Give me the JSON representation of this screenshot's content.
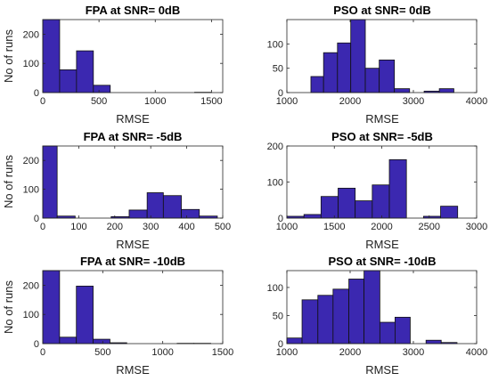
{
  "bar_color": "#3B28B0",
  "bar_edge": "#111111",
  "chart_data": [
    {
      "type": "bar",
      "title": "FPA at SNR= 0dB",
      "xlabel": "RMSE",
      "ylabel": "No of runs",
      "xlim": [
        0,
        1600
      ],
      "ylim": [
        0,
        250
      ],
      "xticks": [
        0,
        500,
        1000,
        1500
      ],
      "yticks": [
        0,
        100,
        200
      ],
      "bins": [
        {
          "x0": 0,
          "x1": 150,
          "value": 260
        },
        {
          "x0": 150,
          "x1": 300,
          "value": 78
        },
        {
          "x0": 300,
          "x1": 450,
          "value": 143
        },
        {
          "x0": 450,
          "x1": 600,
          "value": 25
        },
        {
          "x0": 600,
          "x1": 750,
          "value": 0
        },
        {
          "x0": 750,
          "x1": 900,
          "value": 0
        },
        {
          "x0": 900,
          "x1": 1050,
          "value": 0
        },
        {
          "x0": 1050,
          "x1": 1200,
          "value": 0
        },
        {
          "x0": 1200,
          "x1": 1350,
          "value": 0
        },
        {
          "x0": 1350,
          "x1": 1500,
          "value": 1
        }
      ]
    },
    {
      "type": "bar",
      "title": "PSO at SNR= 0dB",
      "xlabel": "RMSE",
      "ylabel": "",
      "xlim": [
        1000,
        4000
      ],
      "ylim": [
        0,
        150
      ],
      "xticks": [
        1000,
        2000,
        3000,
        4000
      ],
      "yticks": [
        0,
        50,
        100
      ],
      "bins": [
        {
          "x0": 1380,
          "x1": 1580,
          "value": 33
        },
        {
          "x0": 1580,
          "x1": 1800,
          "value": 82
        },
        {
          "x0": 1800,
          "x1": 2010,
          "value": 102
        },
        {
          "x0": 2010,
          "x1": 2240,
          "value": 155
        },
        {
          "x0": 2240,
          "x1": 2460,
          "value": 50
        },
        {
          "x0": 2460,
          "x1": 2700,
          "value": 67
        },
        {
          "x0": 2700,
          "x1": 2940,
          "value": 8
        },
        {
          "x0": 2940,
          "x1": 3170,
          "value": 0
        },
        {
          "x0": 3170,
          "x1": 3410,
          "value": 3
        },
        {
          "x0": 3410,
          "x1": 3640,
          "value": 8
        }
      ]
    },
    {
      "type": "bar",
      "title": "FPA at SNR= -5dB",
      "xlabel": "RMSE",
      "ylabel": "No of runs",
      "xlim": [
        0,
        500
      ],
      "ylim": [
        0,
        250
      ],
      "xticks": [
        0,
        100,
        200,
        300,
        400,
        500
      ],
      "yticks": [
        0,
        100,
        200
      ],
      "bins": [
        {
          "x0": 0,
          "x1": 40,
          "value": 260
        },
        {
          "x0": 40,
          "x1": 90,
          "value": 7
        },
        {
          "x0": 90,
          "x1": 140,
          "value": 0
        },
        {
          "x0": 140,
          "x1": 190,
          "value": 0
        },
        {
          "x0": 190,
          "x1": 240,
          "value": 5
        },
        {
          "x0": 240,
          "x1": 290,
          "value": 28
        },
        {
          "x0": 290,
          "x1": 335,
          "value": 88
        },
        {
          "x0": 335,
          "x1": 385,
          "value": 78
        },
        {
          "x0": 385,
          "x1": 435,
          "value": 30
        },
        {
          "x0": 435,
          "x1": 485,
          "value": 7
        }
      ]
    },
    {
      "type": "bar",
      "title": "PSO at SNR= -5dB",
      "xlabel": "RMSE",
      "ylabel": "",
      "xlim": [
        1000,
        3000
      ],
      "ylim": [
        0,
        200
      ],
      "xticks": [
        1000,
        1500,
        2000,
        2500,
        3000
      ],
      "yticks": [
        0,
        100,
        200
      ],
      "bins": [
        {
          "x0": 1000,
          "x1": 1180,
          "value": 5
        },
        {
          "x0": 1180,
          "x1": 1360,
          "value": 10
        },
        {
          "x0": 1360,
          "x1": 1540,
          "value": 60
        },
        {
          "x0": 1540,
          "x1": 1720,
          "value": 83
        },
        {
          "x0": 1720,
          "x1": 1900,
          "value": 48
        },
        {
          "x0": 1900,
          "x1": 2080,
          "value": 92
        },
        {
          "x0": 2080,
          "x1": 2260,
          "value": 162
        },
        {
          "x0": 2260,
          "x1": 2440,
          "value": 0
        },
        {
          "x0": 2440,
          "x1": 2620,
          "value": 5
        },
        {
          "x0": 2620,
          "x1": 2800,
          "value": 33
        }
      ]
    },
    {
      "type": "bar",
      "title": "FPA at SNR= -10dB",
      "xlabel": "RMSE",
      "ylabel": "No of runs",
      "xlim": [
        0,
        1500
      ],
      "ylim": [
        0,
        250
      ],
      "xticks": [
        0,
        500,
        1000,
        1500
      ],
      "yticks": [
        0,
        100,
        200
      ],
      "bins": [
        {
          "x0": 0,
          "x1": 140,
          "value": 260
        },
        {
          "x0": 140,
          "x1": 280,
          "value": 22
        },
        {
          "x0": 280,
          "x1": 420,
          "value": 197
        },
        {
          "x0": 420,
          "x1": 560,
          "value": 15
        },
        {
          "x0": 560,
          "x1": 700,
          "value": 3
        },
        {
          "x0": 700,
          "x1": 840,
          "value": 0
        },
        {
          "x0": 840,
          "x1": 980,
          "value": 0
        },
        {
          "x0": 980,
          "x1": 1120,
          "value": 0
        },
        {
          "x0": 1120,
          "x1": 1260,
          "value": 1
        },
        {
          "x0": 1260,
          "x1": 1400,
          "value": 1
        }
      ]
    },
    {
      "type": "bar",
      "title": "PSO at SNR= -10dB",
      "xlabel": "RMSE",
      "ylabel": "",
      "xlim": [
        1000,
        4000
      ],
      "ylim": [
        0,
        130
      ],
      "xticks": [
        1000,
        2000,
        3000,
        4000
      ],
      "yticks": [
        0,
        50,
        100
      ],
      "bins": [
        {
          "x0": 1000,
          "x1": 1240,
          "value": 10
        },
        {
          "x0": 1240,
          "x1": 1490,
          "value": 78
        },
        {
          "x0": 1490,
          "x1": 1730,
          "value": 86
        },
        {
          "x0": 1730,
          "x1": 1980,
          "value": 97
        },
        {
          "x0": 1980,
          "x1": 2220,
          "value": 115
        },
        {
          "x0": 2220,
          "x1": 2470,
          "value": 135
        },
        {
          "x0": 2470,
          "x1": 2710,
          "value": 38
        },
        {
          "x0": 2710,
          "x1": 2950,
          "value": 47
        },
        {
          "x0": 2950,
          "x1": 3200,
          "value": 0
        },
        {
          "x0": 3200,
          "x1": 3440,
          "value": 6
        },
        {
          "x0": 3440,
          "x1": 3690,
          "value": 2
        }
      ]
    }
  ]
}
